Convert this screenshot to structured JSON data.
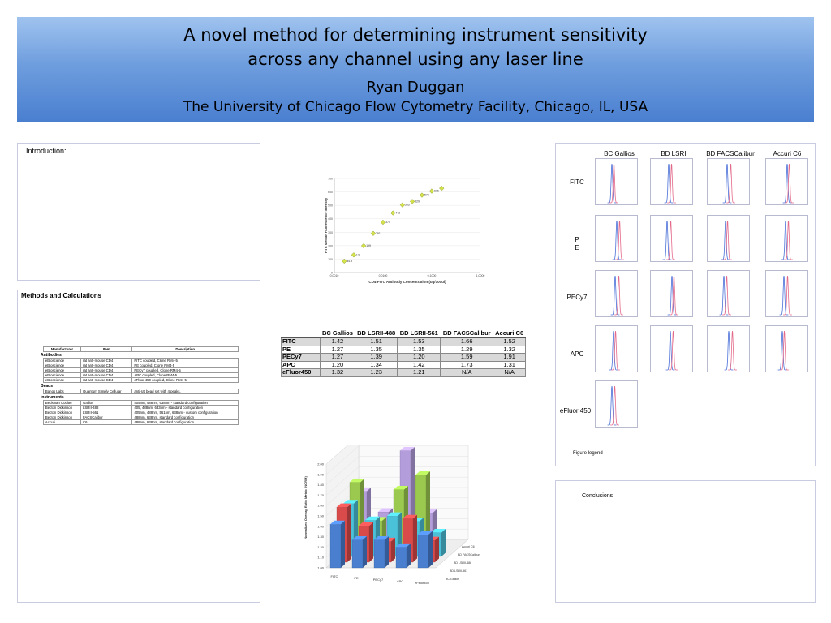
{
  "banner": {
    "title_line1": "A novel method for determining instrument sensitivity",
    "title_line2": "across any channel using any laser line",
    "author": "Ryan Duggan",
    "affiliation": "The University of Chicago Flow Cytometry Facility, Chicago, IL, USA",
    "background_color": "#6f9ede"
  },
  "introduction": {
    "label": "Introduction:"
  },
  "methods": {
    "label": "Methods and Calculations",
    "headers": [
      "Manufacturer",
      "Item",
      "Description"
    ],
    "sections": [
      {
        "name": "Antibodies",
        "rows": [
          [
            "eBioscience",
            "rat anti-mouse CD4",
            "FITC coupled, Clone RM4-5"
          ],
          [
            "eBioscience",
            "rat anti-mouse CD4",
            "PE coupled, Clone RM4-5"
          ],
          [
            "eBioscience",
            "rat anti-mouse CD4",
            "PECy7 coupled, Clone RM4-5"
          ],
          [
            "eBioscience",
            "rat anti-mouse CD4",
            "APC coupled, Clone RM4-5"
          ],
          [
            "eBioscience",
            "rat anti-mouse CD4",
            "eFluor 450 coupled, Clone RM4-5"
          ]
        ]
      },
      {
        "name": "Beads",
        "rows": [
          [
            "Bangs Labs",
            "Quantum Simply Cellular",
            "anti-rat bead set with 4 peaks."
          ]
        ]
      },
      {
        "name": "Instruments",
        "rows": [
          [
            "Beckman Coulter",
            "Gallios",
            "405nm, 488nm, 638nm - standard configuration"
          ],
          [
            "Becton Dickinson",
            "LSRII-488",
            "405, 488nm, 633nm - standard configuration"
          ],
          [
            "Becton Dickinson",
            "LSRII-561",
            "405nm, 488nm, 561nm, 638nm - custom configuration"
          ],
          [
            "Becton Dickinson",
            "FACSCalibur",
            "488nm, 638nm, standard configuration"
          ],
          [
            "Accuri",
            "C6",
            "488nm, 638nm, standard configuration"
          ]
        ]
      }
    ]
  },
  "results_table": {
    "headers": [
      "",
      "BC Gallios",
      "BD LSRII-488",
      "BD LSRII-561",
      "BD FACSCalibur",
      "Accuri C6"
    ],
    "rows": [
      [
        "FITC",
        "1.42",
        "1.51",
        "1.53",
        "1.66",
        "1.52"
      ],
      [
        "PE",
        "1.27",
        "1.35",
        "1.35",
        "1.29",
        "1.32"
      ],
      [
        "PECy7",
        "1.27",
        "1.39",
        "1.20",
        "1.59",
        "1.91"
      ],
      [
        "APC",
        "1.20",
        "1.34",
        "1.42",
        "1.73",
        "1.31"
      ],
      [
        "eFluor450",
        "1.32",
        "1.23",
        "1.21",
        "N/A",
        "N/A"
      ]
    ]
  },
  "histogram_grid": {
    "columns": [
      "BC Gallios",
      "BD LSRII",
      "BD FACSCalibur",
      "Accuri C6"
    ],
    "rows": [
      "FITC",
      "P\nE",
      "PECy7",
      "APC",
      "eFluor 450"
    ],
    "legend": "Figure legend",
    "colors": {
      "blue": "#4a6fd8",
      "red": "#e46a8a"
    }
  },
  "conclusions": {
    "label": "Conclusions"
  },
  "chart_data": [
    {
      "type": "scatter",
      "xlabel": "CD4-FITC Antibody Concentration (ug/100ul)",
      "ylabel": "FITC Median Fluorescence Intensity",
      "x_scale": "log",
      "x_ticks": [
        "0.0010",
        "0.0100",
        "0.1000",
        "1.0000"
      ],
      "ylim": [
        0,
        700
      ],
      "y_ticks": [
        "0",
        "100",
        "200",
        "300",
        "400",
        "500",
        "600",
        "700"
      ],
      "x": [
        0.0016,
        0.0025,
        0.004,
        0.0063,
        0.01,
        0.016,
        0.025,
        0.04,
        0.063,
        0.1,
        0.16
      ],
      "y": [
        84.9,
        131,
        199,
        291,
        374,
        443,
        503,
        529,
        576,
        606,
        627
      ],
      "point_labels": [
        "84.9",
        "131",
        "199",
        "291",
        "374",
        "443",
        "503",
        "529",
        "576",
        "606",
        ""
      ],
      "marker_color": "#d6e24a"
    },
    {
      "type": "bar",
      "subtype": "3d",
      "ylabel": "Normalized Overlap Ratio Metric (NORM)",
      "ylim": [
        1.0,
        2.0
      ],
      "y_ticks": [
        "1.00",
        "1.10",
        "1.20",
        "1.30",
        "1.40",
        "1.50",
        "1.60",
        "1.70",
        "1.80",
        "1.90",
        "2.00"
      ],
      "categories": [
        "FITC",
        "PE",
        "PECy7",
        "APC",
        "eFluor450"
      ],
      "series_axis_labels": [
        "Accuri C6",
        "BD FACSCalibur",
        "BD LSRII-488",
        "BD LSRII-561",
        "BC Gallios"
      ],
      "series": [
        {
          "name": "BC Gallios",
          "color": "#4a7fd0",
          "values": [
            1.42,
            1.27,
            1.27,
            1.2,
            1.32
          ]
        },
        {
          "name": "BD LSRII-561",
          "color": "#d94b4b",
          "values": [
            1.53,
            1.35,
            1.2,
            1.42,
            1.21
          ]
        },
        {
          "name": "BD LSRII-488",
          "color": "#4bc0d9",
          "values": [
            1.51,
            1.35,
            1.39,
            1.34,
            1.23
          ]
        },
        {
          "name": "BD FACSCalibur",
          "color": "#9bc84f",
          "values": [
            1.66,
            1.29,
            1.59,
            1.73,
            null
          ]
        },
        {
          "name": "Accuri C6",
          "color": "#b39ddb",
          "values": [
            1.52,
            1.32,
            1.91,
            1.31,
            null
          ]
        }
      ]
    }
  ]
}
